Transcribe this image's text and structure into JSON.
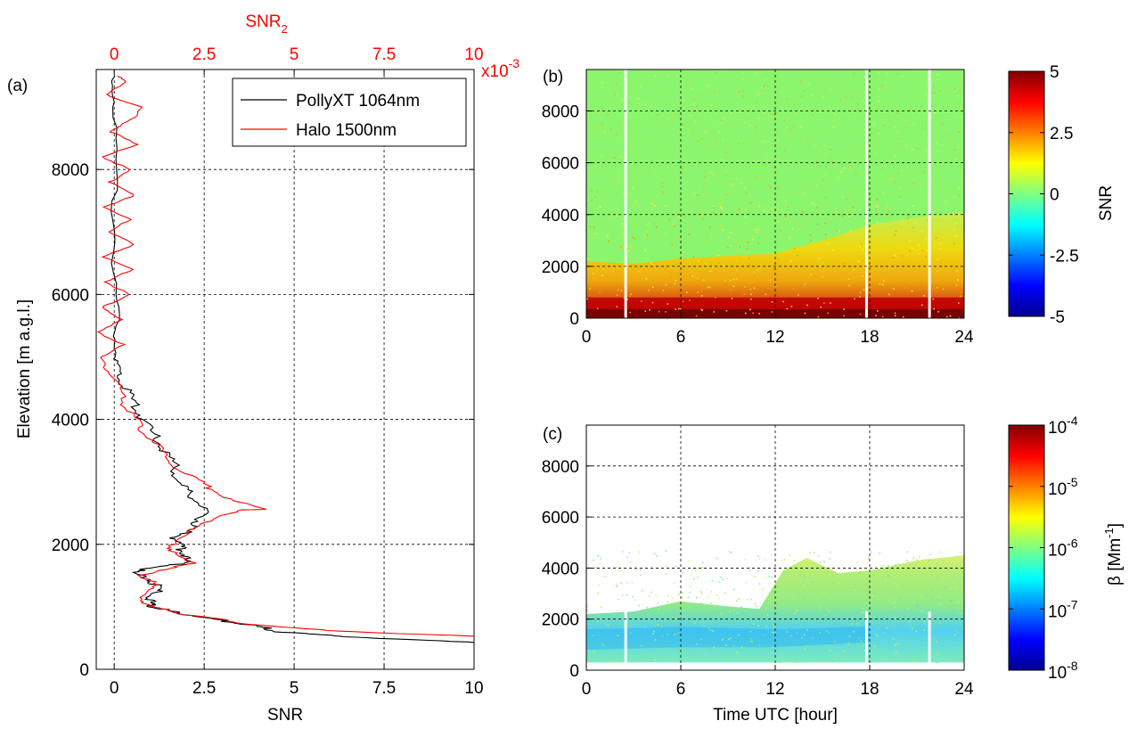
{
  "chart_data": [
    {
      "panel": "(a)",
      "type": "line",
      "xlabel": "SNR",
      "ylabel": "Elevation [m a.g.l.]",
      "x2label": "SNR",
      "x2label_sub": "2",
      "x2_exponent_base": "x10",
      "x2_exponent_power": "-3",
      "xlim": [
        -0.5,
        10
      ],
      "ylim": [
        0,
        9600
      ],
      "xticks": [
        0,
        2.5,
        5,
        7.5,
        10
      ],
      "xtick_labels": [
        "0",
        "2.5",
        "5",
        "7.5",
        "10"
      ],
      "x2ticks": [
        0,
        2.5,
        5,
        7.5,
        10
      ],
      "x2tick_labels": [
        "0",
        "2.5",
        "5",
        "7.5",
        "10"
      ],
      "yticks": [
        0,
        2000,
        4000,
        6000,
        8000
      ],
      "ytick_labels": [
        "0",
        "2000",
        "4000",
        "6000",
        "8000"
      ],
      "grid": true,
      "legend_position": "top-right",
      "series": [
        {
          "name": "PollyXT 1064nm",
          "color": "#000000",
          "axis": "bottom",
          "points": [
            [
              10,
              430
            ],
            [
              8,
              480
            ],
            [
              6.5,
              520
            ],
            [
              5.5,
              560
            ],
            [
              4.6,
              600
            ],
            [
              4.2,
              660
            ],
            [
              3.8,
              700
            ],
            [
              3.2,
              760
            ],
            [
              2.8,
              800
            ],
            [
              2.3,
              850
            ],
            [
              1.8,
              900
            ],
            [
              1.4,
              960
            ],
            [
              1.1,
              1000
            ],
            [
              1.0,
              1060
            ],
            [
              1.05,
              1150
            ],
            [
              1.2,
              1250
            ],
            [
              1.15,
              1350
            ],
            [
              1.0,
              1450
            ],
            [
              0.4,
              1550
            ],
            [
              1.1,
              1620
            ],
            [
              1.9,
              1700
            ],
            [
              2.0,
              1800
            ],
            [
              1.9,
              1900
            ],
            [
              1.8,
              2000
            ],
            [
              1.7,
              2100
            ],
            [
              2.0,
              2200
            ],
            [
              2.2,
              2300
            ],
            [
              2.4,
              2400
            ],
            [
              2.5,
              2550
            ],
            [
              2.3,
              2700
            ],
            [
              2.0,
              2850
            ],
            [
              1.8,
              3000
            ],
            [
              1.7,
              3200
            ],
            [
              1.5,
              3400
            ],
            [
              1.3,
              3600
            ],
            [
              1.0,
              3800
            ],
            [
              0.8,
              4000
            ],
            [
              0.6,
              4200
            ],
            [
              0.4,
              4400
            ],
            [
              0.2,
              4600
            ],
            [
              0.1,
              4800
            ],
            [
              0.05,
              5000
            ],
            [
              0.05,
              5400
            ],
            [
              0.03,
              6000
            ],
            [
              0.02,
              7000
            ],
            [
              0.02,
              8000
            ],
            [
              0.02,
              9000
            ],
            [
              0.02,
              9500
            ]
          ]
        },
        {
          "name": "Halo 1500nm",
          "color": "#ff0000",
          "axis": "top",
          "points": [
            [
              10,
              530
            ],
            [
              8,
              570
            ],
            [
              6,
              620
            ],
            [
              4.5,
              680
            ],
            [
              3.5,
              740
            ],
            [
              3,
              800
            ],
            [
              2,
              870
            ],
            [
              1.5,
              950
            ],
            [
              1,
              1000
            ],
            [
              0.8,
              1100
            ],
            [
              0.9,
              1250
            ],
            [
              1.2,
              1400
            ],
            [
              0.7,
              1500
            ],
            [
              1.5,
              1620
            ],
            [
              2.3,
              1700
            ],
            [
              1.8,
              1800
            ],
            [
              1.6,
              1900
            ],
            [
              1.6,
              2000
            ],
            [
              1.9,
              2150
            ],
            [
              2.4,
              2300
            ],
            [
              2.8,
              2450
            ],
            [
              3.6,
              2550
            ],
            [
              4.2,
              2560
            ],
            [
              3.3,
              2700
            ],
            [
              2.8,
              2850
            ],
            [
              2.4,
              3000
            ],
            [
              1.8,
              3200
            ],
            [
              1.4,
              3400
            ],
            [
              1.2,
              3600
            ],
            [
              0.8,
              3800
            ],
            [
              0.6,
              4000
            ],
            [
              0.3,
              4200
            ],
            [
              0.2,
              4400
            ],
            [
              0.1,
              4600
            ],
            [
              -0.2,
              4800
            ],
            [
              -0.4,
              5000
            ],
            [
              0.3,
              5200
            ],
            [
              -0.5,
              5400
            ],
            [
              0.2,
              5600
            ],
            [
              -0.3,
              5800
            ],
            [
              0.4,
              6000
            ],
            [
              -0.2,
              6200
            ],
            [
              0.5,
              6400
            ],
            [
              -0.3,
              6600
            ],
            [
              0.6,
              6800
            ],
            [
              -0.2,
              7000
            ],
            [
              0.5,
              7200
            ],
            [
              -0.3,
              7400
            ],
            [
              0.6,
              7600
            ],
            [
              -0.1,
              7800
            ],
            [
              0.4,
              8000
            ],
            [
              -0.3,
              8200
            ],
            [
              0.6,
              8400
            ],
            [
              -0.1,
              8600
            ],
            [
              0.5,
              8800
            ],
            [
              0.7,
              9000
            ],
            [
              -0.2,
              9200
            ],
            [
              0.3,
              9400
            ],
            [
              0.1,
              9500
            ]
          ]
        }
      ]
    },
    {
      "panel": "(b)",
      "type": "heatmap",
      "xlabel": "",
      "ylabel": "",
      "xlim": [
        0,
        24
      ],
      "ylim": [
        0,
        9600
      ],
      "xticks": [
        0,
        6,
        12,
        18,
        24
      ],
      "xtick_labels": [
        "0",
        "6",
        "12",
        "18",
        "24"
      ],
      "yticks": [
        0,
        2000,
        4000,
        6000,
        8000
      ],
      "ytick_labels": [
        "0",
        "2000",
        "4000",
        "6000",
        "8000"
      ],
      "grid": true,
      "colorbar_label": "SNR",
      "colorbar_ticks": [
        "5",
        "2.5",
        "0",
        "-2.5",
        "-5"
      ],
      "clim": [
        -5,
        5
      ],
      "data_gaps_hours": [
        2.5,
        17.8,
        21.8
      ],
      "layers": [
        {
          "description_level": "surface",
          "top_m": 300,
          "value": 5
        },
        {
          "top_m": 800,
          "value": 4
        },
        {
          "top_m": 2300,
          "value": 2
        },
        {
          "top_m": 9600,
          "value": 0.3
        }
      ],
      "boundary_top_m": [
        [
          0,
          2200
        ],
        [
          3,
          2100
        ],
        [
          6,
          2300
        ],
        [
          9,
          2400
        ],
        [
          12,
          2500
        ],
        [
          15,
          3000
        ],
        [
          18,
          3600
        ],
        [
          21,
          3900
        ],
        [
          24,
          4100
        ]
      ]
    },
    {
      "panel": "(c)",
      "type": "heatmap",
      "xlabel": "Time UTC [hour]",
      "ylabel": "",
      "xlim": [
        0,
        24
      ],
      "ylim": [
        0,
        9600
      ],
      "xticks": [
        0,
        6,
        12,
        18,
        24
      ],
      "xtick_labels": [
        "0",
        "6",
        "12",
        "18",
        "24"
      ],
      "yticks": [
        0,
        2000,
        4000,
        6000,
        8000
      ],
      "ytick_labels": [
        "0",
        "2000",
        "4000",
        "6000",
        "8000"
      ],
      "grid": true,
      "colorbar_label_prefix": "β [Mm",
      "colorbar_label_power": "-1",
      "colorbar_label_suffix": "]",
      "colorbar_ticks": [
        {
          "base": "10",
          "power": "-4"
        },
        {
          "base": "10",
          "power": "-5"
        },
        {
          "base": "10",
          "power": "-6"
        },
        {
          "base": "10",
          "power": "-7"
        },
        {
          "base": "10",
          "power": "-8"
        }
      ],
      "scale": "log",
      "clim": [
        1e-08,
        0.0001
      ],
      "data_gaps_hours": [
        2.5,
        17.8,
        21.8
      ],
      "cloud_top_m": [
        [
          0,
          2200
        ],
        [
          3,
          2300
        ],
        [
          6,
          2700
        ],
        [
          9,
          2500
        ],
        [
          11,
          2400
        ],
        [
          12.5,
          3900
        ],
        [
          14,
          4400
        ],
        [
          16,
          3800
        ],
        [
          18,
          3900
        ],
        [
          21,
          4300
        ],
        [
          24,
          4500
        ]
      ],
      "cloud_bottom_m": 300
    }
  ]
}
